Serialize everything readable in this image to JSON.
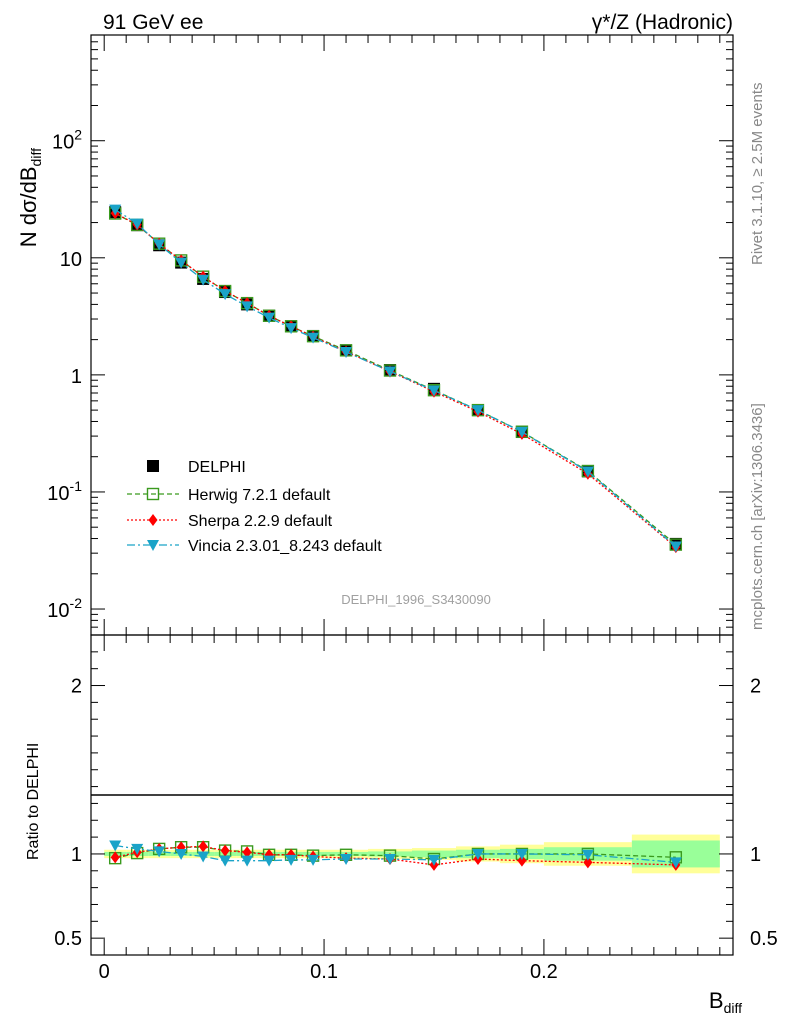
{
  "header": {
    "left": "91 GeV ee",
    "right": "γ*/Z (Hadronic)"
  },
  "side_labels": {
    "rivet": "Rivet 3.1.10, ≥ 2.5M events",
    "mcplots": "mcplots.cern.ch [arXiv:1306.3436]"
  },
  "watermark": "DELPHI_1996_S3430090",
  "colors": {
    "data": "#000000",
    "herwig": "#3a9a1e",
    "sherpa": "#ff0000",
    "vincia": "#1aa3c8",
    "band_outer": "#ffff99",
    "band_inner": "#99ff99"
  },
  "chart_data": [
    {
      "type": "scatter",
      "panel": "main",
      "ylabel_main": "N dσ/dB",
      "ylabel_sub": "diff",
      "yscale": "log",
      "ylim": [
        0.006,
        800
      ],
      "xlim": [
        -0.006,
        0.286
      ],
      "yticks": [
        {
          "base": "10",
          "exp": "-2"
        },
        {
          "base": "10",
          "exp": "-1"
        },
        {
          "base": "1",
          "exp": ""
        },
        {
          "base": "10",
          "exp": ""
        },
        {
          "base": "10",
          "exp": "2"
        }
      ],
      "x": [
        0.005,
        0.015,
        0.025,
        0.035,
        0.045,
        0.055,
        0.065,
        0.075,
        0.085,
        0.095,
        0.11,
        0.13,
        0.15,
        0.17,
        0.19,
        0.22,
        0.26
      ],
      "series": [
        {
          "name": "DELPHI",
          "key": "data",
          "marker": "square",
          "values": [
            24.5,
            19.0,
            12.8,
            9.1,
            6.6,
            5.1,
            4.0,
            3.2,
            2.6,
            2.15,
            1.62,
            1.1,
            0.76,
            0.5,
            0.325,
            0.15,
            0.036
          ]
        },
        {
          "name": "Herwig 7.2.1 default",
          "key": "herwig",
          "marker": "open-square",
          "values": [
            23.9,
            19.1,
            13.2,
            9.5,
            6.9,
            5.2,
            4.1,
            3.2,
            2.6,
            2.14,
            1.62,
            1.09,
            0.74,
            0.5,
            0.327,
            0.151,
            0.0355
          ]
        },
        {
          "name": "Sherpa 2.2.9 default",
          "key": "sherpa",
          "marker": "diamond",
          "values": [
            24.0,
            19.2,
            13.2,
            9.5,
            6.9,
            5.2,
            4.1,
            3.2,
            2.6,
            2.12,
            1.58,
            1.07,
            0.72,
            0.485,
            0.313,
            0.143,
            0.0338
          ]
        },
        {
          "name": "Vincia 2.3.01_8.243 default",
          "key": "vincia",
          "marker": "triangle-down",
          "values": [
            25.8,
            19.6,
            13.0,
            9.1,
            6.5,
            4.9,
            3.85,
            3.08,
            2.51,
            2.08,
            1.57,
            1.07,
            0.735,
            0.5,
            0.326,
            0.149,
            0.0342
          ]
        }
      ]
    },
    {
      "type": "scatter",
      "panel": "ratio",
      "ylabel": "Ratio to DELPHI",
      "xlabel_main": "B",
      "xlabel_sub": "diff",
      "ylim": [
        0.4,
        2.3
      ],
      "xlim": [
        -0.006,
        0.286
      ],
      "yticks": [
        "0.5",
        "1",
        "2"
      ],
      "xticks": [
        "0",
        "0.1",
        "0.2"
      ],
      "x": [
        0.005,
        0.015,
        0.025,
        0.035,
        0.045,
        0.055,
        0.065,
        0.075,
        0.085,
        0.095,
        0.11,
        0.13,
        0.15,
        0.17,
        0.19,
        0.22,
        0.26
      ],
      "bin_edges": [
        0.0,
        0.01,
        0.02,
        0.03,
        0.04,
        0.05,
        0.06,
        0.07,
        0.08,
        0.09,
        0.1,
        0.12,
        0.14,
        0.16,
        0.18,
        0.2,
        0.24,
        0.28
      ],
      "band_outer_halfwidth": [
        0.025,
        0.025,
        0.025,
        0.025,
        0.025,
        0.025,
        0.025,
        0.025,
        0.025,
        0.025,
        0.025,
        0.03,
        0.035,
        0.045,
        0.055,
        0.07,
        0.115
      ],
      "band_inner_halfwidth": [
        0.012,
        0.012,
        0.012,
        0.012,
        0.012,
        0.012,
        0.012,
        0.012,
        0.012,
        0.012,
        0.012,
        0.015,
        0.02,
        0.025,
        0.03,
        0.04,
        0.08
      ],
      "series": [
        {
          "name": "Herwig 7.2.1 default",
          "key": "herwig",
          "marker": "open-square",
          "values": [
            0.975,
            1.005,
            1.03,
            1.04,
            1.04,
            1.02,
            1.015,
            0.995,
            0.995,
            0.99,
            0.995,
            0.99,
            0.97,
            1.0,
            1.0,
            1.0,
            0.98
          ]
        },
        {
          "name": "Sherpa 2.2.9 default",
          "key": "sherpa",
          "marker": "diamond",
          "values": [
            0.98,
            1.01,
            1.03,
            1.04,
            1.045,
            1.02,
            1.01,
            0.995,
            0.995,
            0.985,
            0.975,
            0.97,
            0.935,
            0.97,
            0.96,
            0.95,
            0.935
          ]
        },
        {
          "name": "Vincia 2.3.01_8.243 default",
          "key": "vincia",
          "marker": "triangle-down",
          "values": [
            1.05,
            1.03,
            1.015,
            1.0,
            0.985,
            0.96,
            0.96,
            0.96,
            0.965,
            0.965,
            0.97,
            0.97,
            0.965,
            1.0,
            1.0,
            0.995,
            0.95
          ]
        }
      ]
    }
  ]
}
